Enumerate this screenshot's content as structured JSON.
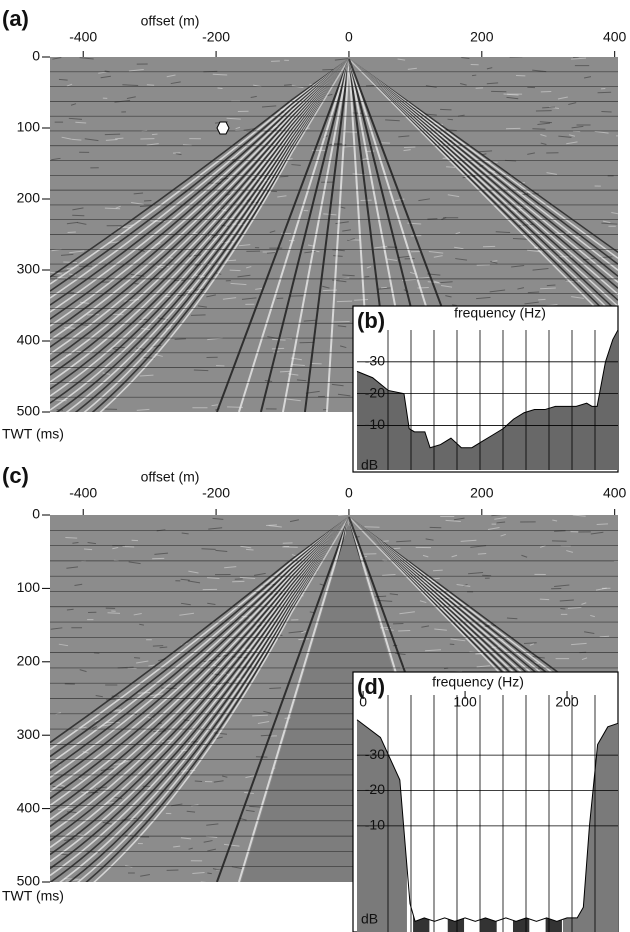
{
  "chart_data": [
    {
      "type": "seismic",
      "panel_label": "(a)",
      "x_label": "offset (m)",
      "y_label": "TWT (ms)",
      "xlim": [
        -450,
        405
      ],
      "xticks": [
        -400,
        -200,
        0,
        200,
        400
      ],
      "ylim": [
        0,
        500
      ],
      "yticks": [
        0,
        100,
        200,
        300,
        400,
        500
      ],
      "mute": false
    },
    {
      "type": "area",
      "panel_label": "(b)",
      "x_label": "frequency (Hz)",
      "y_label": "dB",
      "x": [
        0,
        15,
        30,
        45,
        50,
        55,
        65,
        70,
        80,
        90,
        100,
        110,
        120,
        130,
        140,
        150,
        160,
        170,
        180,
        190,
        200,
        210,
        220,
        225,
        230,
        238,
        245,
        250
      ],
      "values": [
        -27,
        -25,
        -21,
        -20,
        -9,
        -8,
        -8,
        -3,
        -4,
        -6,
        -3,
        -3,
        -5,
        -7,
        -9,
        -12,
        -14,
        -15,
        -15,
        -16,
        -16,
        -16,
        -17,
        -16,
        -16,
        -30,
        -37,
        -40
      ],
      "color": "#686868",
      "xlim": [
        0,
        250
      ],
      "ylim": [
        -40,
        4
      ],
      "yticks": [
        -10,
        -20,
        -30
      ],
      "notched": false
    },
    {
      "type": "seismic",
      "panel_label": "(c)",
      "x_label": "offset (m)",
      "y_label": "TWT (ms)",
      "xlim": [
        -450,
        405
      ],
      "xticks": [
        -400,
        -200,
        0,
        200,
        400
      ],
      "ylim": [
        0,
        500
      ],
      "yticks": [
        0,
        100,
        200,
        300,
        400,
        500
      ],
      "mute": true
    },
    {
      "type": "area",
      "panel_label": "(d)",
      "x_label": "frequency (Hz)",
      "y_label": "dB",
      "x": [
        -6,
        17,
        36,
        46,
        51,
        60,
        70,
        80,
        90,
        100,
        110,
        120,
        130,
        140,
        150,
        160,
        170,
        180,
        190,
        200,
        210,
        216,
        222,
        230,
        240,
        250
      ],
      "values": [
        -40,
        -35,
        -23,
        12,
        17,
        16,
        17,
        16,
        17,
        16,
        17,
        16,
        17,
        16,
        17,
        16,
        17,
        16,
        17,
        16,
        16,
        13,
        -10,
        -33,
        -38,
        -39
      ],
      "color": "#7a7a7a",
      "xlim": [
        -6,
        250
      ],
      "ylim": [
        -47,
        20
      ],
      "xticks": [
        0,
        100,
        200
      ],
      "yticks": [
        -10,
        -20,
        -30
      ],
      "notched": true
    }
  ]
}
